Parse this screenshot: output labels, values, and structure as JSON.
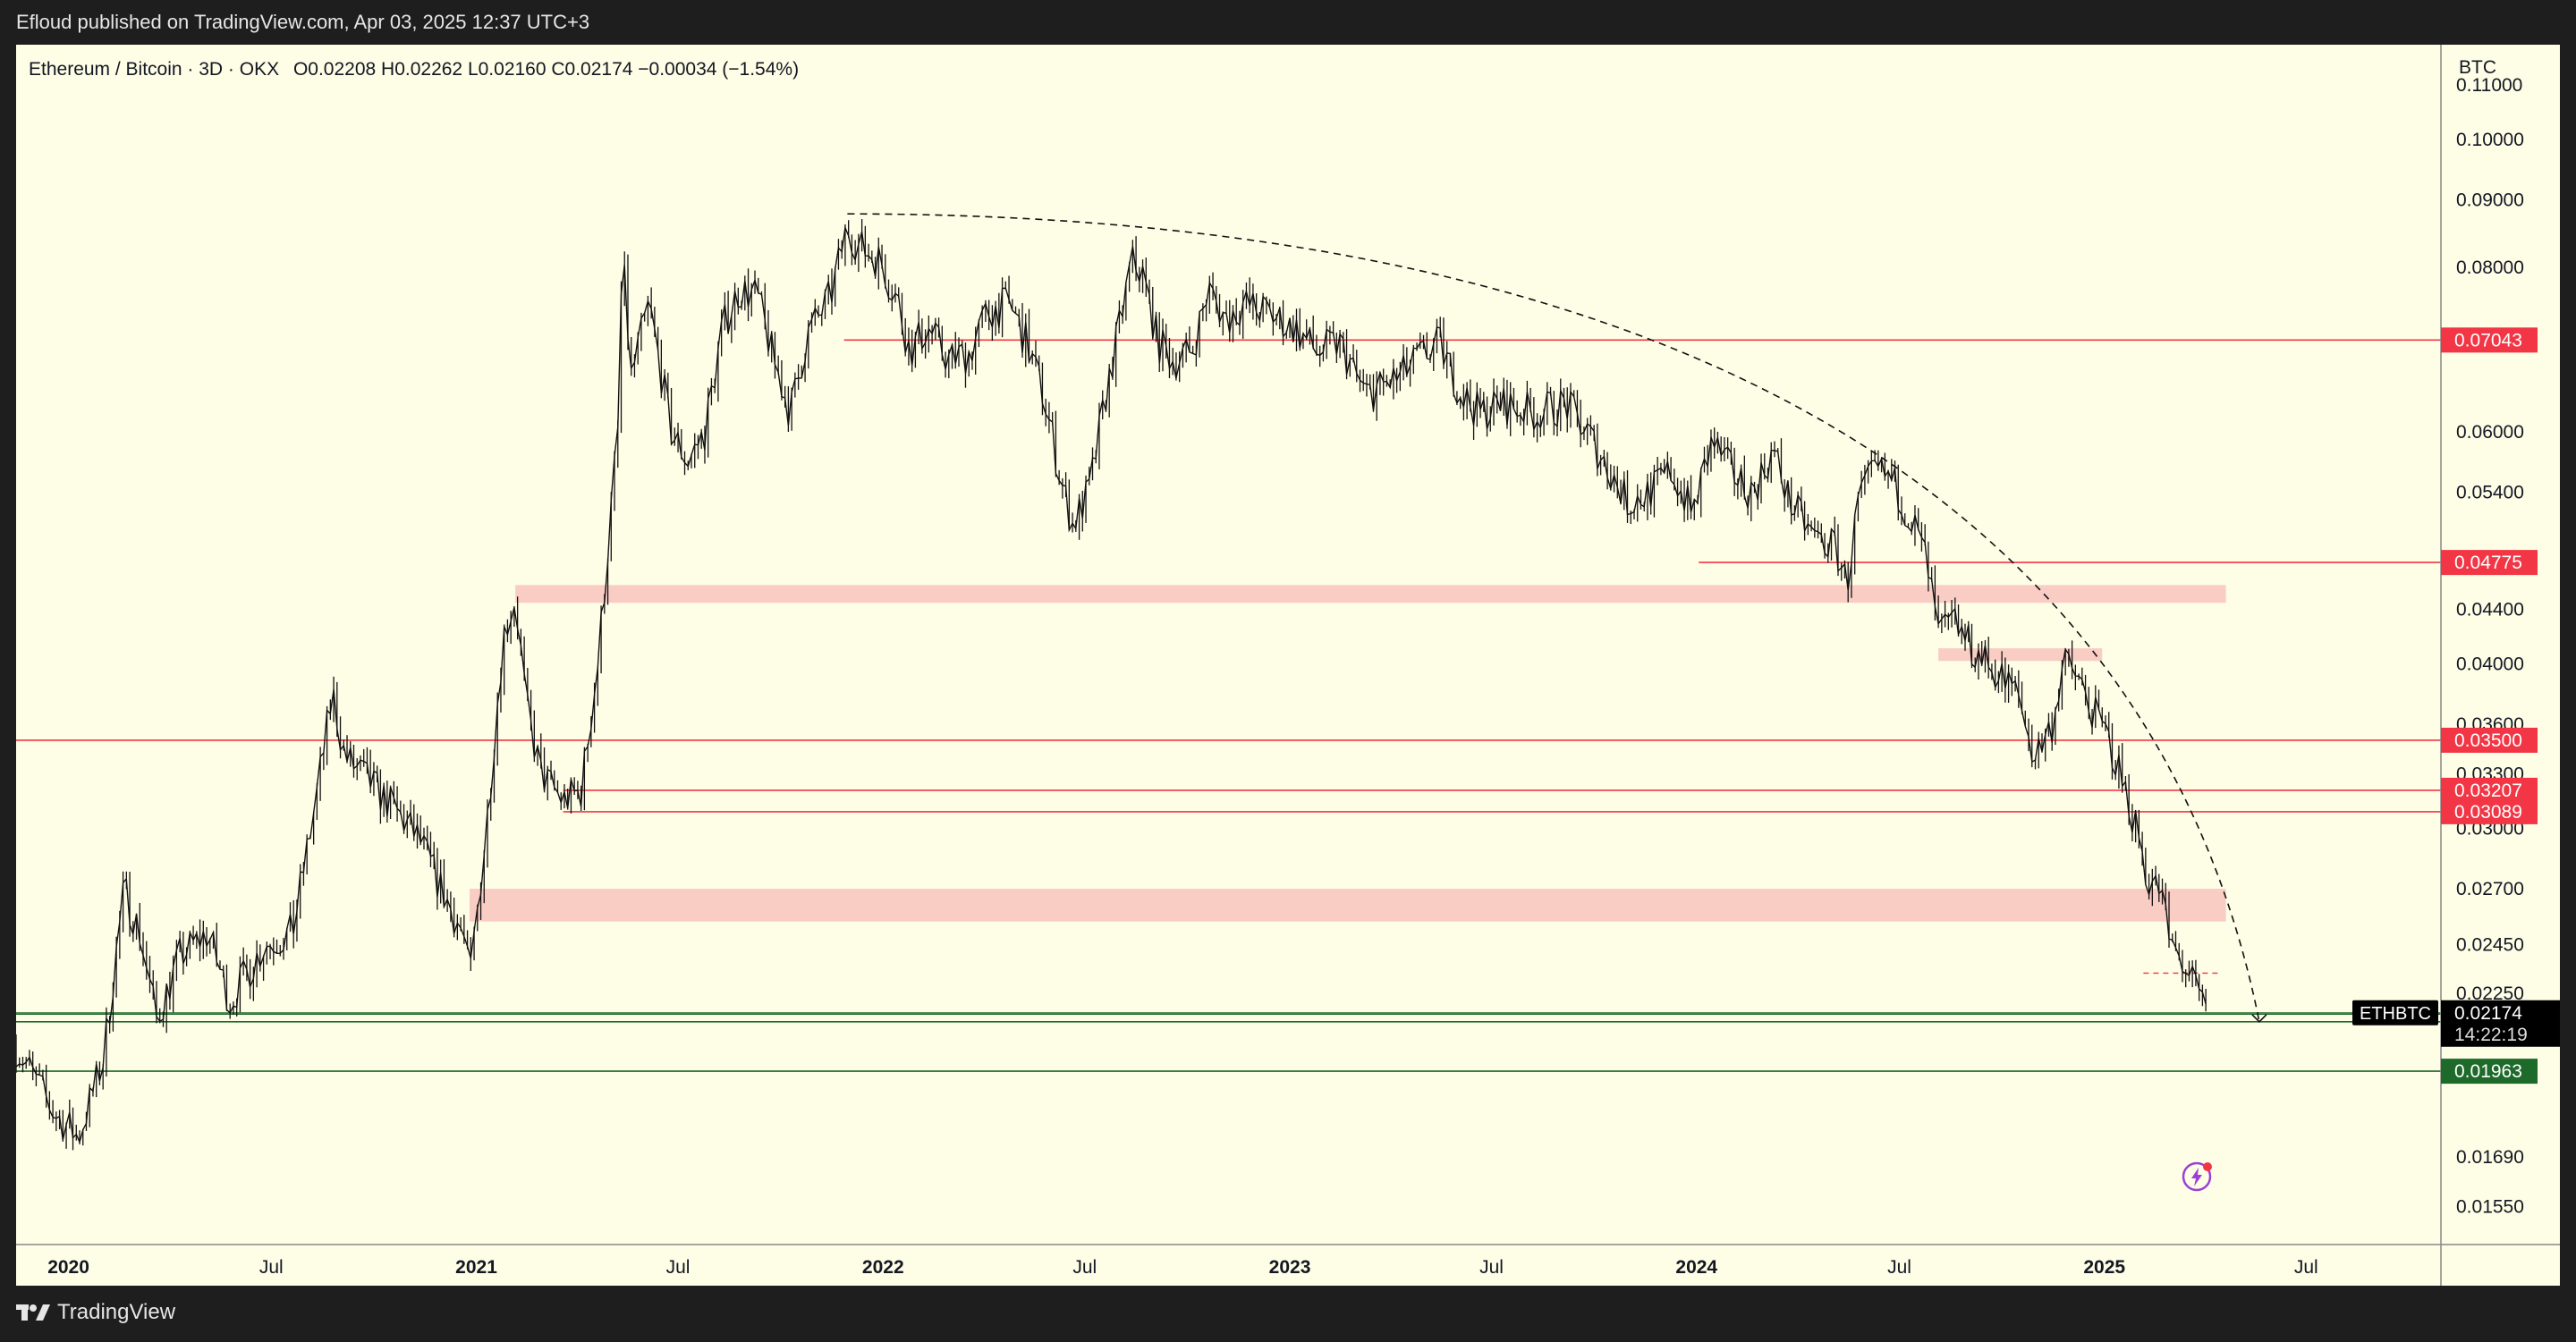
{
  "header": {
    "published": "Efloud published on TradingView.com, Apr 03, 2025 12:37 UTC+3"
  },
  "footer": {
    "brand": "TradingView"
  },
  "chart_data": {
    "type": "candlestick",
    "title": "Ethereum / Bitcoin · 3D · OKX",
    "ohlc_label": "O0.02208  H0.02262  L0.02160  C0.02174  −0.00034 (−1.54%)",
    "currency": "BTC",
    "symbol": "ETHBTC",
    "last_price": "0.02174",
    "countdown": "14:22:19",
    "y_scale": "log",
    "ylim": [
      0.0145,
      0.118
    ],
    "x_range": [
      "2019-11-15",
      "2025-10-30"
    ],
    "y_ticks": [
      "0.11000",
      "0.10000",
      "0.09000",
      "0.08000",
      "0.06000",
      "0.05400",
      "0.04400",
      "0.04000",
      "0.03600",
      "0.03300",
      "0.03000",
      "0.02700",
      "0.02450",
      "0.02250",
      "0.01690",
      "0.01550"
    ],
    "x_ticks": [
      {
        "label": "2020",
        "date": "2020-01-01",
        "bold": true
      },
      {
        "label": "Jul",
        "date": "2020-07-01",
        "bold": false
      },
      {
        "label": "2021",
        "date": "2021-01-01",
        "bold": true
      },
      {
        "label": "Jul",
        "date": "2021-07-01",
        "bold": false
      },
      {
        "label": "2022",
        "date": "2022-01-01",
        "bold": true
      },
      {
        "label": "Jul",
        "date": "2022-07-01",
        "bold": false
      },
      {
        "label": "2023",
        "date": "2023-01-01",
        "bold": true
      },
      {
        "label": "Jul",
        "date": "2023-07-01",
        "bold": false
      },
      {
        "label": "2024",
        "date": "2024-01-01",
        "bold": true
      },
      {
        "label": "Jul",
        "date": "2024-07-01",
        "bold": false
      },
      {
        "label": "2025",
        "date": "2025-01-01",
        "bold": true
      },
      {
        "label": "Jul",
        "date": "2025-07-01",
        "bold": false
      }
    ],
    "price_path": [
      [
        "2019-11-15",
        0.0205
      ],
      [
        "2019-12-20",
        0.0182
      ],
      [
        "2020-01-10",
        0.0175
      ],
      [
        "2020-02-01",
        0.02
      ],
      [
        "2020-02-20",
        0.027
      ],
      [
        "2020-03-05",
        0.025
      ],
      [
        "2020-03-20",
        0.0215
      ],
      [
        "2020-04-10",
        0.024
      ],
      [
        "2020-05-05",
        0.025
      ],
      [
        "2020-05-25",
        0.0222
      ],
      [
        "2020-06-25",
        0.0245
      ],
      [
        "2020-07-20",
        0.025
      ],
      [
        "2020-08-10",
        0.0315
      ],
      [
        "2020-08-25",
        0.038
      ],
      [
        "2020-09-05",
        0.034
      ],
      [
        "2020-09-20",
        0.033
      ],
      [
        "2020-10-20",
        0.031
      ],
      [
        "2020-11-10",
        0.0295
      ],
      [
        "2020-12-05",
        0.0265
      ],
      [
        "2020-12-20",
        0.025
      ],
      [
        "2020-12-26",
        0.023
      ],
      [
        "2021-01-10",
        0.03
      ],
      [
        "2021-01-25",
        0.042
      ],
      [
        "2021-02-05",
        0.045
      ],
      [
        "2021-02-15",
        0.037
      ],
      [
        "2021-02-28",
        0.033
      ],
      [
        "2021-03-20",
        0.0315
      ],
      [
        "2021-04-05",
        0.032
      ],
      [
        "2021-04-20",
        0.04
      ],
      [
        "2021-04-30",
        0.05
      ],
      [
        "2021-05-08",
        0.06
      ],
      [
        "2021-05-12",
        0.082
      ],
      [
        "2021-05-20",
        0.066
      ],
      [
        "2021-06-05",
        0.075
      ],
      [
        "2021-06-25",
        0.06
      ],
      [
        "2021-07-10",
        0.057
      ],
      [
        "2021-07-25",
        0.06
      ],
      [
        "2021-08-10",
        0.072
      ],
      [
        "2021-08-25",
        0.077
      ],
      [
        "2021-09-10",
        0.076
      ],
      [
        "2021-09-25",
        0.068
      ],
      [
        "2021-10-10",
        0.062
      ],
      [
        "2021-10-25",
        0.071
      ],
      [
        "2021-11-15",
        0.076
      ],
      [
        "2021-11-30",
        0.086
      ],
      [
        "2021-12-10",
        0.083
      ],
      [
        "2021-12-30",
        0.081
      ],
      [
        "2022-01-15",
        0.075
      ],
      [
        "2022-01-25",
        0.069
      ],
      [
        "2022-02-10",
        0.072
      ],
      [
        "2022-03-01",
        0.068
      ],
      [
        "2022-03-20",
        0.069
      ],
      [
        "2022-04-05",
        0.074
      ],
      [
        "2022-04-25",
        0.075
      ],
      [
        "2022-05-10",
        0.07
      ],
      [
        "2022-05-25",
        0.064
      ],
      [
        "2022-06-10",
        0.055
      ],
      [
        "2022-06-20",
        0.051
      ],
      [
        "2022-07-05",
        0.054
      ],
      [
        "2022-07-20",
        0.064
      ],
      [
        "2022-08-05",
        0.075
      ],
      [
        "2022-08-12",
        0.081
      ],
      [
        "2022-08-22",
        0.079
      ],
      [
        "2022-09-05",
        0.07
      ],
      [
        "2022-09-20",
        0.068
      ],
      [
        "2022-10-05",
        0.069
      ],
      [
        "2022-10-20",
        0.077
      ],
      [
        "2022-11-05",
        0.073
      ],
      [
        "2022-11-20",
        0.075
      ],
      [
        "2022-12-10",
        0.074
      ],
      [
        "2023-01-05",
        0.072
      ],
      [
        "2023-01-25",
        0.069
      ],
      [
        "2023-02-15",
        0.07
      ],
      [
        "2023-03-10",
        0.064
      ],
      [
        "2023-03-25",
        0.065
      ],
      [
        "2023-04-10",
        0.066
      ],
      [
        "2023-04-25",
        0.068
      ],
      [
        "2023-05-15",
        0.07
      ],
      [
        "2023-06-05",
        0.064
      ],
      [
        "2023-06-20",
        0.062
      ],
      [
        "2023-07-10",
        0.063
      ],
      [
        "2023-08-10",
        0.062
      ],
      [
        "2023-09-05",
        0.063
      ],
      [
        "2023-09-25",
        0.06
      ],
      [
        "2023-10-15",
        0.056
      ],
      [
        "2023-11-01",
        0.053
      ],
      [
        "2023-11-20",
        0.054
      ],
      [
        "2023-12-10",
        0.056
      ],
      [
        "2023-12-28",
        0.052
      ],
      [
        "2024-01-15",
        0.059
      ],
      [
        "2024-02-01",
        0.056
      ],
      [
        "2024-02-20",
        0.054
      ],
      [
        "2024-03-10",
        0.058
      ],
      [
        "2024-03-25",
        0.053
      ],
      [
        "2024-04-15",
        0.05
      ],
      [
        "2024-05-05",
        0.049
      ],
      [
        "2024-05-15",
        0.046
      ],
      [
        "2024-05-25",
        0.053
      ],
      [
        "2024-06-10",
        0.056
      ],
      [
        "2024-06-25",
        0.055
      ],
      [
        "2024-07-10",
        0.052
      ],
      [
        "2024-07-25",
        0.048
      ],
      [
        "2024-08-05",
        0.042
      ],
      [
        "2024-08-20",
        0.043
      ],
      [
        "2024-09-05",
        0.041
      ],
      [
        "2024-09-25",
        0.0395
      ],
      [
        "2024-10-15",
        0.038
      ],
      [
        "2024-10-30",
        0.034
      ],
      [
        "2024-11-15",
        0.036
      ],
      [
        "2024-11-25",
        0.04
      ],
      [
        "2024-12-05",
        0.0395
      ],
      [
        "2024-12-20",
        0.037
      ],
      [
        "2025-01-05",
        0.035
      ],
      [
        "2025-01-20",
        0.032
      ],
      [
        "2025-02-02",
        0.0295
      ],
      [
        "2025-02-08",
        0.0275
      ],
      [
        "2025-02-20",
        0.027
      ],
      [
        "2025-03-01",
        0.0245
      ],
      [
        "2025-03-15",
        0.0235
      ],
      [
        "2025-03-25",
        0.0225
      ],
      [
        "2025-04-03",
        0.02174
      ]
    ],
    "h_lines": [
      {
        "price": 0.07043,
        "label": "0.07043",
        "color": "#f23645",
        "from": "2021-11-27"
      },
      {
        "price": 0.04775,
        "label": "0.04775",
        "color": "#f23645",
        "from": "2024-01-03"
      },
      {
        "price": 0.035,
        "label": "0.03500",
        "color": "#f23645",
        "from": "2019-11-15"
      },
      {
        "price": 0.03207,
        "label": "0.03207",
        "color": "#f23645",
        "from": "2021-03-20"
      },
      {
        "price": 0.03089,
        "label": "0.03089",
        "color": "#f23645",
        "from": "2021-03-20"
      },
      {
        "price": 0.02169,
        "label": "0.02169",
        "color": "#1e6a2a",
        "from": "2019-11-15"
      },
      {
        "price": 0.0214,
        "label": "0.02140",
        "color": "#1e6a2a",
        "from": "2019-11-15"
      },
      {
        "price": 0.01963,
        "label": "0.01963",
        "color": "#1e6a2a",
        "from": "2019-11-15"
      }
    ],
    "zones": [
      {
        "low": 0.0445,
        "high": 0.0459,
        "from": "2021-02-05",
        "to": "2025-04-20"
      },
      {
        "low": 0.0402,
        "high": 0.0411,
        "from": "2024-08-05",
        "to": "2024-12-30"
      },
      {
        "low": 0.0255,
        "high": 0.027,
        "from": "2020-12-26",
        "to": "2025-04-20"
      }
    ],
    "arc": {
      "start": [
        "2021-11-30",
        0.0878
      ],
      "end": [
        "2025-05-20",
        0.0214
      ]
    },
    "small_dash": {
      "price": 0.0233,
      "from": "2025-02-05",
      "to": "2025-04-15"
    }
  }
}
